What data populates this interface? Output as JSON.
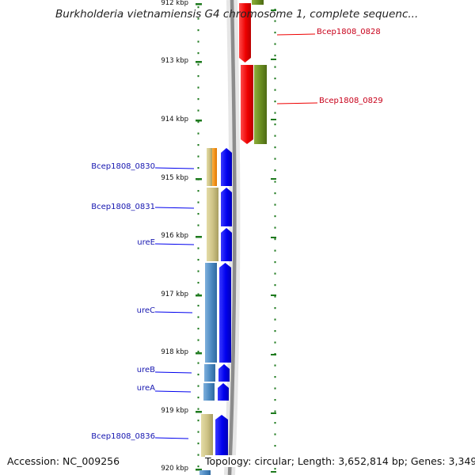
{
  "title": "Burkholderia vietnamiensis G4 chromosome 1, complete sequenc...",
  "colors": {
    "forward_gene": "#0000ee",
    "reverse_gene": "#ee0000",
    "tick": "#1e7a1e",
    "label_blue": "#1616b0",
    "label_red": "#c8001a"
  },
  "ruler": {
    "labels": [
      "912 kbp",
      "913 kbp",
      "914 kbp",
      "915 kbp",
      "916 kbp",
      "917 kbp",
      "918 kbp",
      "919 kbp",
      "920 kbp"
    ]
  },
  "genes_forward": [
    {
      "name": "Bcep1808_0830",
      "color": "#0000ee"
    },
    {
      "name": "Bcep1808_0831",
      "color": "#0000ee"
    },
    {
      "name": "ureE",
      "color": "#0000ee"
    },
    {
      "name": "ureC",
      "color": "#0000ee"
    },
    {
      "name": "ureB",
      "color": "#0000ee"
    },
    {
      "name": "ureA",
      "color": "#0000ee"
    },
    {
      "name": "Bcep1808_0836",
      "color": "#0000ee"
    }
  ],
  "genes_reverse": [
    {
      "name": "Bcep1808_0828",
      "color": "#ee0000"
    },
    {
      "name": "Bcep1808_0829",
      "color": "#ee0000"
    }
  ],
  "footer": {
    "accession": "Accession: NC_009256",
    "topology": "Topology: circular; Length: 3,652,814 bp; Genes: 3,349"
  }
}
